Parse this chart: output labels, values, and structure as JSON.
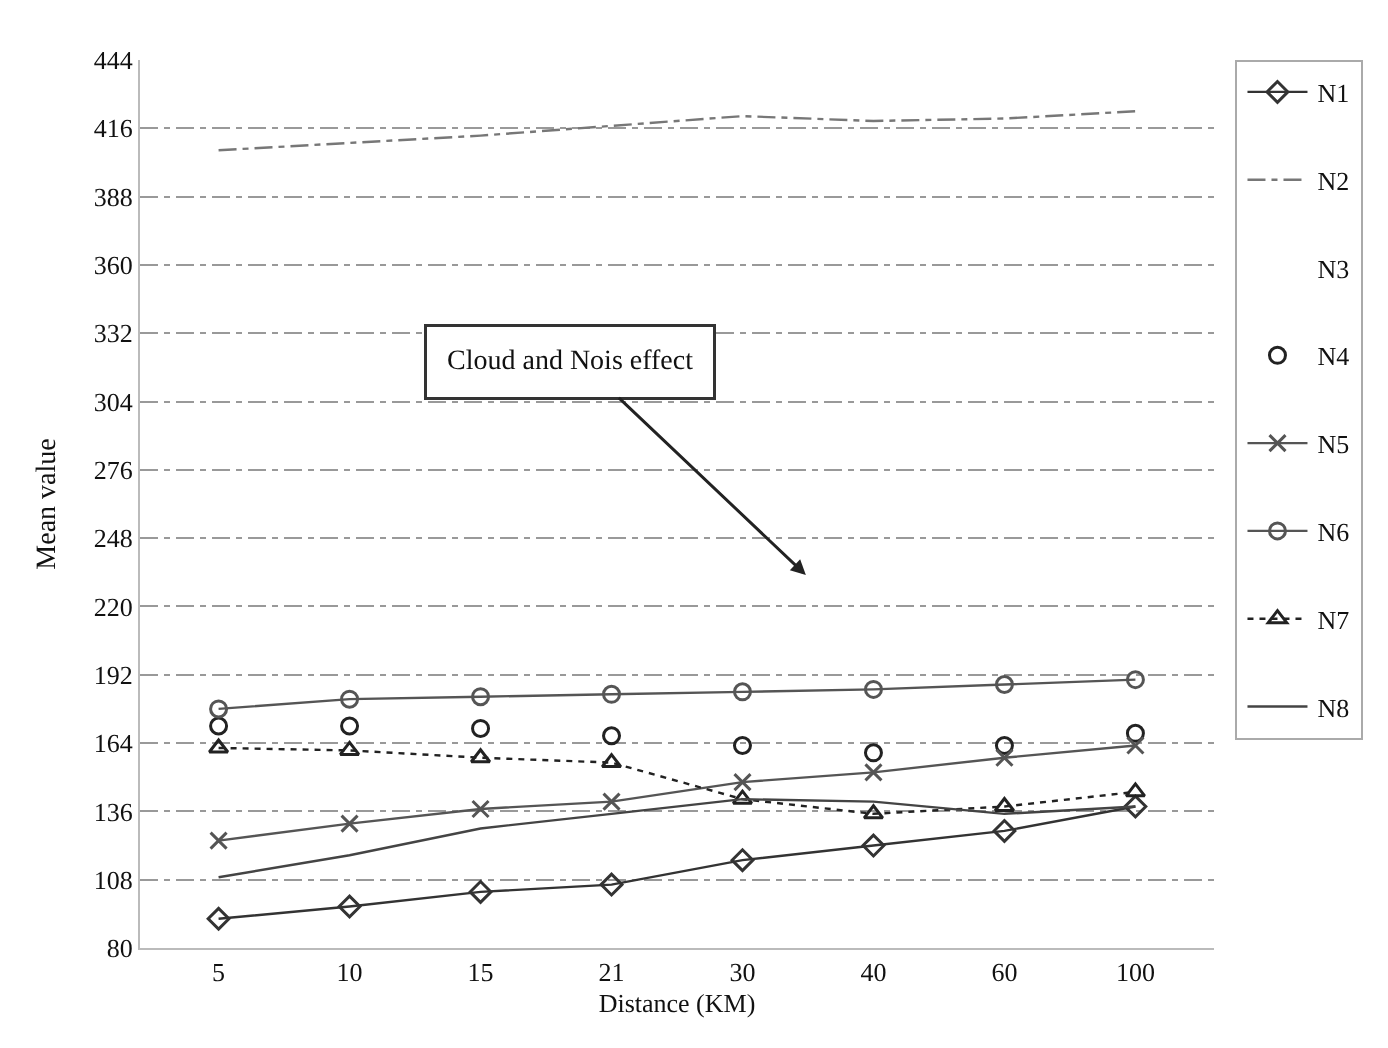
{
  "chart_data": {
    "type": "line",
    "xlabel": "Distance (KM)",
    "ylabel": "Mean value",
    "categories": [
      "5",
      "10",
      "15",
      "21",
      "30",
      "40",
      "60",
      "100"
    ],
    "ylim": [
      80,
      444
    ],
    "yticks": [
      80,
      108,
      136,
      164,
      192,
      220,
      248,
      276,
      304,
      332,
      360,
      388,
      416,
      444
    ],
    "grid": "y",
    "legend": "right",
    "series": [
      {
        "name": "N1",
        "color": "#333333",
        "marker": "diamond",
        "line_style": "solid",
        "values": [
          92,
          97,
          103,
          106,
          116,
          122,
          128,
          138
        ]
      },
      {
        "name": "N2",
        "color": "#777777",
        "marker": "none",
        "line_style": "dashed",
        "values": [
          407,
          410,
          413,
          417,
          421,
          419,
          420,
          423
        ]
      },
      {
        "name": "N3",
        "marker": "none",
        "line_style": "solid",
        "values": [
          null,
          null,
          null,
          null,
          null,
          null,
          null,
          null
        ]
      },
      {
        "name": "N4",
        "color": "#222222",
        "type": "scatter",
        "marker": "circle",
        "values": [
          171,
          171,
          170,
          167,
          163,
          160,
          163,
          168
        ]
      },
      {
        "name": "N5",
        "color": "#555555",
        "marker": "cross",
        "line_style": "solid",
        "values": [
          124,
          131,
          137,
          140,
          148,
          152,
          158,
          163
        ]
      },
      {
        "name": "N6",
        "color": "#555555",
        "marker": "circle",
        "line_style": "solid",
        "values": [
          178,
          182,
          183,
          184,
          185,
          186,
          188,
          190
        ]
      },
      {
        "name": "N7",
        "color": "#222222",
        "marker": "triangle",
        "line_style": "dotted",
        "values": [
          162,
          161,
          158,
          156,
          141,
          135,
          138,
          144
        ]
      },
      {
        "name": "N8",
        "color": "#444444",
        "marker": "none",
        "line_style": "solid",
        "values": [
          109,
          118,
          129,
          135,
          141,
          140,
          135,
          138
        ]
      }
    ],
    "annotations": [
      "Cloud and Nois effect"
    ]
  }
}
